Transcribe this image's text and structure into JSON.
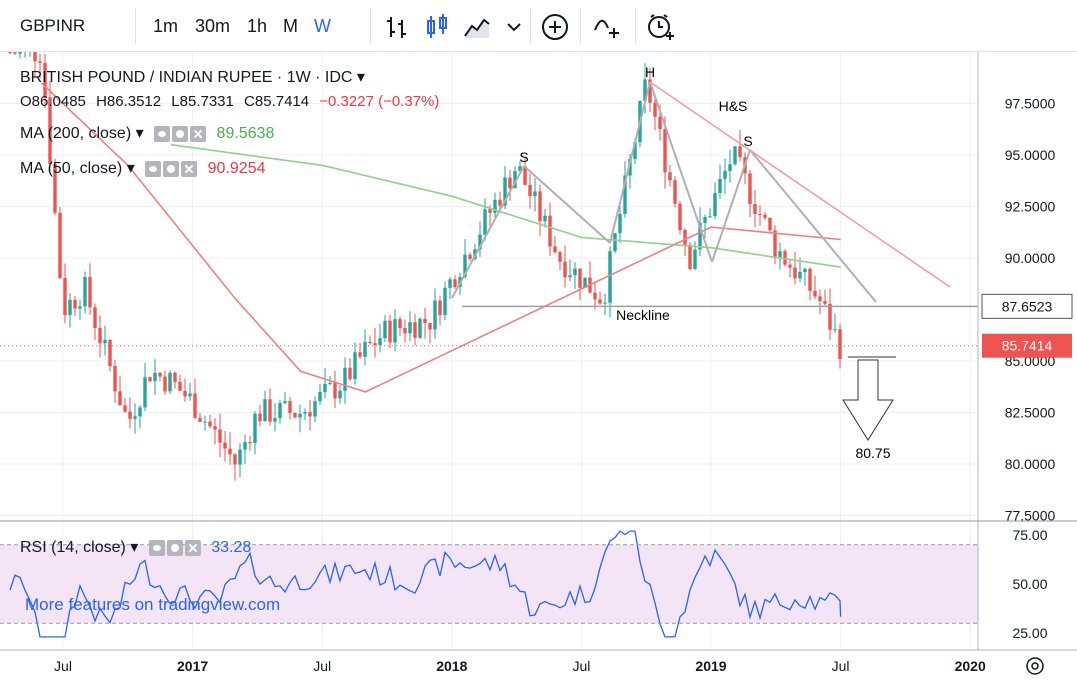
{
  "toolbar": {
    "symbol": "GBPINR",
    "intervals": [
      "1m",
      "30m",
      "1h",
      "M",
      "W"
    ],
    "active_interval": "W",
    "icons": [
      "bar-style-icon",
      "candle-style-icon",
      "area-style-icon",
      "chevron-down-icon",
      "add-indicator-icon",
      "compare-icon",
      "alert-icon"
    ]
  },
  "header": {
    "title": "BRITISH POUND / INDIAN RUPEE · 1W · IDC",
    "o": "O86.0485",
    "h": "H86.3512",
    "l": "L85.7331",
    "c": "C85.7414",
    "chg": "−0.3227 (−0.37%)"
  },
  "ma200": {
    "label": "MA (200, close)",
    "value": "89.5638",
    "color": "#4caf50"
  },
  "ma50": {
    "label": "MA (50, close)",
    "value": "90.9254",
    "color": "#f23645"
  },
  "rsi": {
    "label": "RSI (14, close)",
    "value": "33.28",
    "color": "#2962ff"
  },
  "colors": {
    "up": "#26a69a",
    "down": "#ef5350",
    "ma200": "#8fd18f",
    "ma50": "#f08080",
    "pattern": "#b0b0b0",
    "rsi_bg": "#f3e5f5"
  },
  "price_axis": {
    "ticks": [
      "97.5000",
      "95.0000",
      "92.5000",
      "90.0000",
      "85.0000",
      "82.5000",
      "80.0000",
      "77.5000"
    ],
    "tick_values": [
      97.5,
      95,
      92.5,
      90,
      85,
      82.5,
      80,
      77.5
    ],
    "neckline_label": "87.6523",
    "last_label": "85.7414"
  },
  "rsi_axis": {
    "ticks": [
      "75.00",
      "50.00",
      "25.00"
    ],
    "tick_values": [
      75,
      50,
      25
    ]
  },
  "time_axis": {
    "labels": [
      "Jul",
      "2017",
      "Jul",
      "2018",
      "Jul",
      "2019",
      "Jul",
      "2020"
    ]
  },
  "annotations": {
    "head": "H",
    "pattern": "H&S",
    "left_shoulder": "S",
    "right_shoulder": "S",
    "neckline": "Neckline",
    "target": "80.75"
  },
  "chart_data": {
    "type": "candlestick",
    "title": "BRITISH POUND / INDIAN RUPEE · 1W · IDC",
    "approx_close_path": [
      {
        "x": "2016-06",
        "y": 100.0
      },
      {
        "x": "2016-07",
        "y": 87.5
      },
      {
        "x": "2016-08",
        "y": 88.5
      },
      {
        "x": "2016-10",
        "y": 82.0
      },
      {
        "x": "2016-11",
        "y": 84.5
      },
      {
        "x": "2016-12",
        "y": 84.0
      },
      {
        "x": "2017-01",
        "y": 83.0
      },
      {
        "x": "2017-03",
        "y": 80.0
      },
      {
        "x": "2017-04",
        "y": 82.5
      },
      {
        "x": "2017-06",
        "y": 82.5
      },
      {
        "x": "2017-08",
        "y": 84.0
      },
      {
        "x": "2017-09",
        "y": 85.5
      },
      {
        "x": "2017-10",
        "y": 86.5
      },
      {
        "x": "2017-12",
        "y": 87.0
      },
      {
        "x": "2018-01",
        "y": 89.0
      },
      {
        "x": "2018-04",
        "y": 94.5
      },
      {
        "x": "2018-06",
        "y": 90.0
      },
      {
        "x": "2018-08",
        "y": 88.0
      },
      {
        "x": "2018-10",
        "y": 98.5
      },
      {
        "x": "2018-12",
        "y": 90.0
      },
      {
        "x": "2019-02",
        "y": 95.0
      },
      {
        "x": "2019-04",
        "y": 90.5
      },
      {
        "x": "2019-06",
        "y": 88.0
      },
      {
        "x": "2019-07",
        "y": 85.7
      }
    ],
    "ma200_path": [
      {
        "x": "2016-12",
        "y": 95.5
      },
      {
        "x": "2017-07",
        "y": 94.5
      },
      {
        "x": "2018-01",
        "y": 93.0
      },
      {
        "x": "2018-07",
        "y": 91.0
      },
      {
        "x": "2019-01",
        "y": 90.5
      },
      {
        "x": "2019-07",
        "y": 89.56
      }
    ],
    "ma50_path": [
      {
        "x": "2016-06",
        "y": 98.5
      },
      {
        "x": "2016-10",
        "y": 94.5
      },
      {
        "x": "2017-03",
        "y": 88.0
      },
      {
        "x": "2017-06",
        "y": 84.5
      },
      {
        "x": "2017-09",
        "y": 83.5
      },
      {
        "x": "2018-01",
        "y": 85.5
      },
      {
        "x": "2018-07",
        "y": 88.5
      },
      {
        "x": "2019-01",
        "y": 91.5
      },
      {
        "x": "2019-07",
        "y": 90.9
      }
    ],
    "neckline": 87.6523,
    "last_close": 85.7414,
    "target": 80.75,
    "rsi_last": 33.28
  },
  "promo": "More features on tradingview.com"
}
